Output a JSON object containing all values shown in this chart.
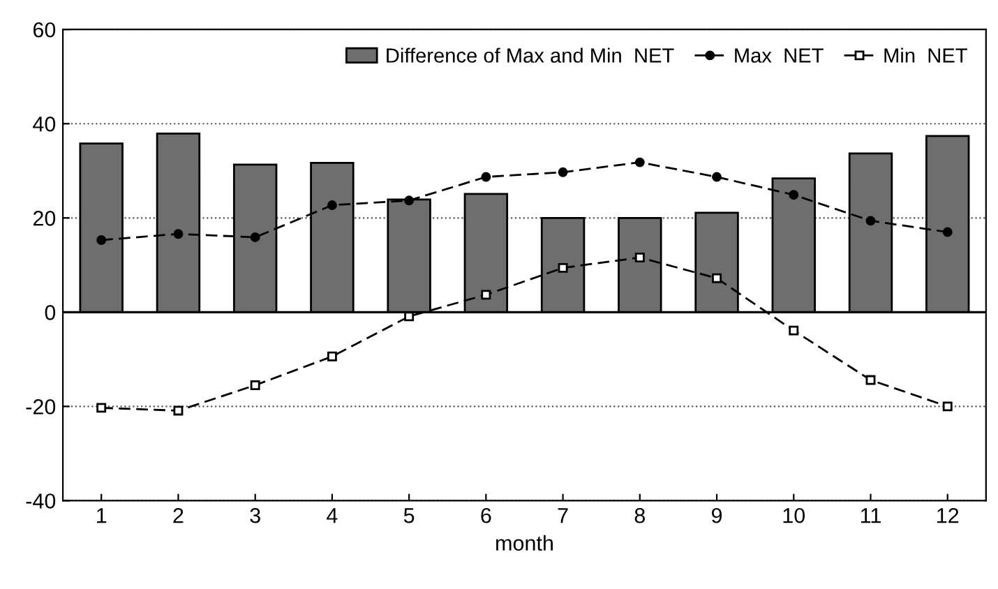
{
  "chart_data": {
    "type": "bar",
    "xlabel": "month",
    "categories": [
      "1",
      "2",
      "3",
      "4",
      "5",
      "6",
      "7",
      "8",
      "9",
      "10",
      "11",
      "12"
    ],
    "series": [
      {
        "name": "Difference of Max and Min  NET",
        "color": "#6e6e6e",
        "values": [
          35.8,
          37.9,
          31.3,
          31.7,
          23.9,
          25.1,
          20,
          20,
          21.1,
          28.4,
          33.7,
          37.4
        ]
      },
      {
        "name": "Max  NET",
        "type": "line",
        "color": "#000000",
        "marker": "circle",
        "line_style": "dashed",
        "values": [
          15.3,
          16.6,
          15.9,
          22.7,
          23.7,
          28.7,
          29.7,
          31.8,
          28.7,
          24.9,
          19.4,
          17.0
        ]
      },
      {
        "name": "Min  NET",
        "type": "line",
        "color": "#000000",
        "marker": "square",
        "line_style": "dashed",
        "values": [
          -20.3,
          -20.9,
          -15.5,
          -9.4,
          -0.9,
          3.7,
          9.4,
          11.6,
          7.2,
          -3.9,
          -14.4,
          -20.0
        ]
      }
    ],
    "ylim": [
      -40,
      60
    ],
    "yticks": [
      -40,
      -20,
      0,
      20,
      40,
      60
    ],
    "grid": "y",
    "legend": "top right"
  }
}
